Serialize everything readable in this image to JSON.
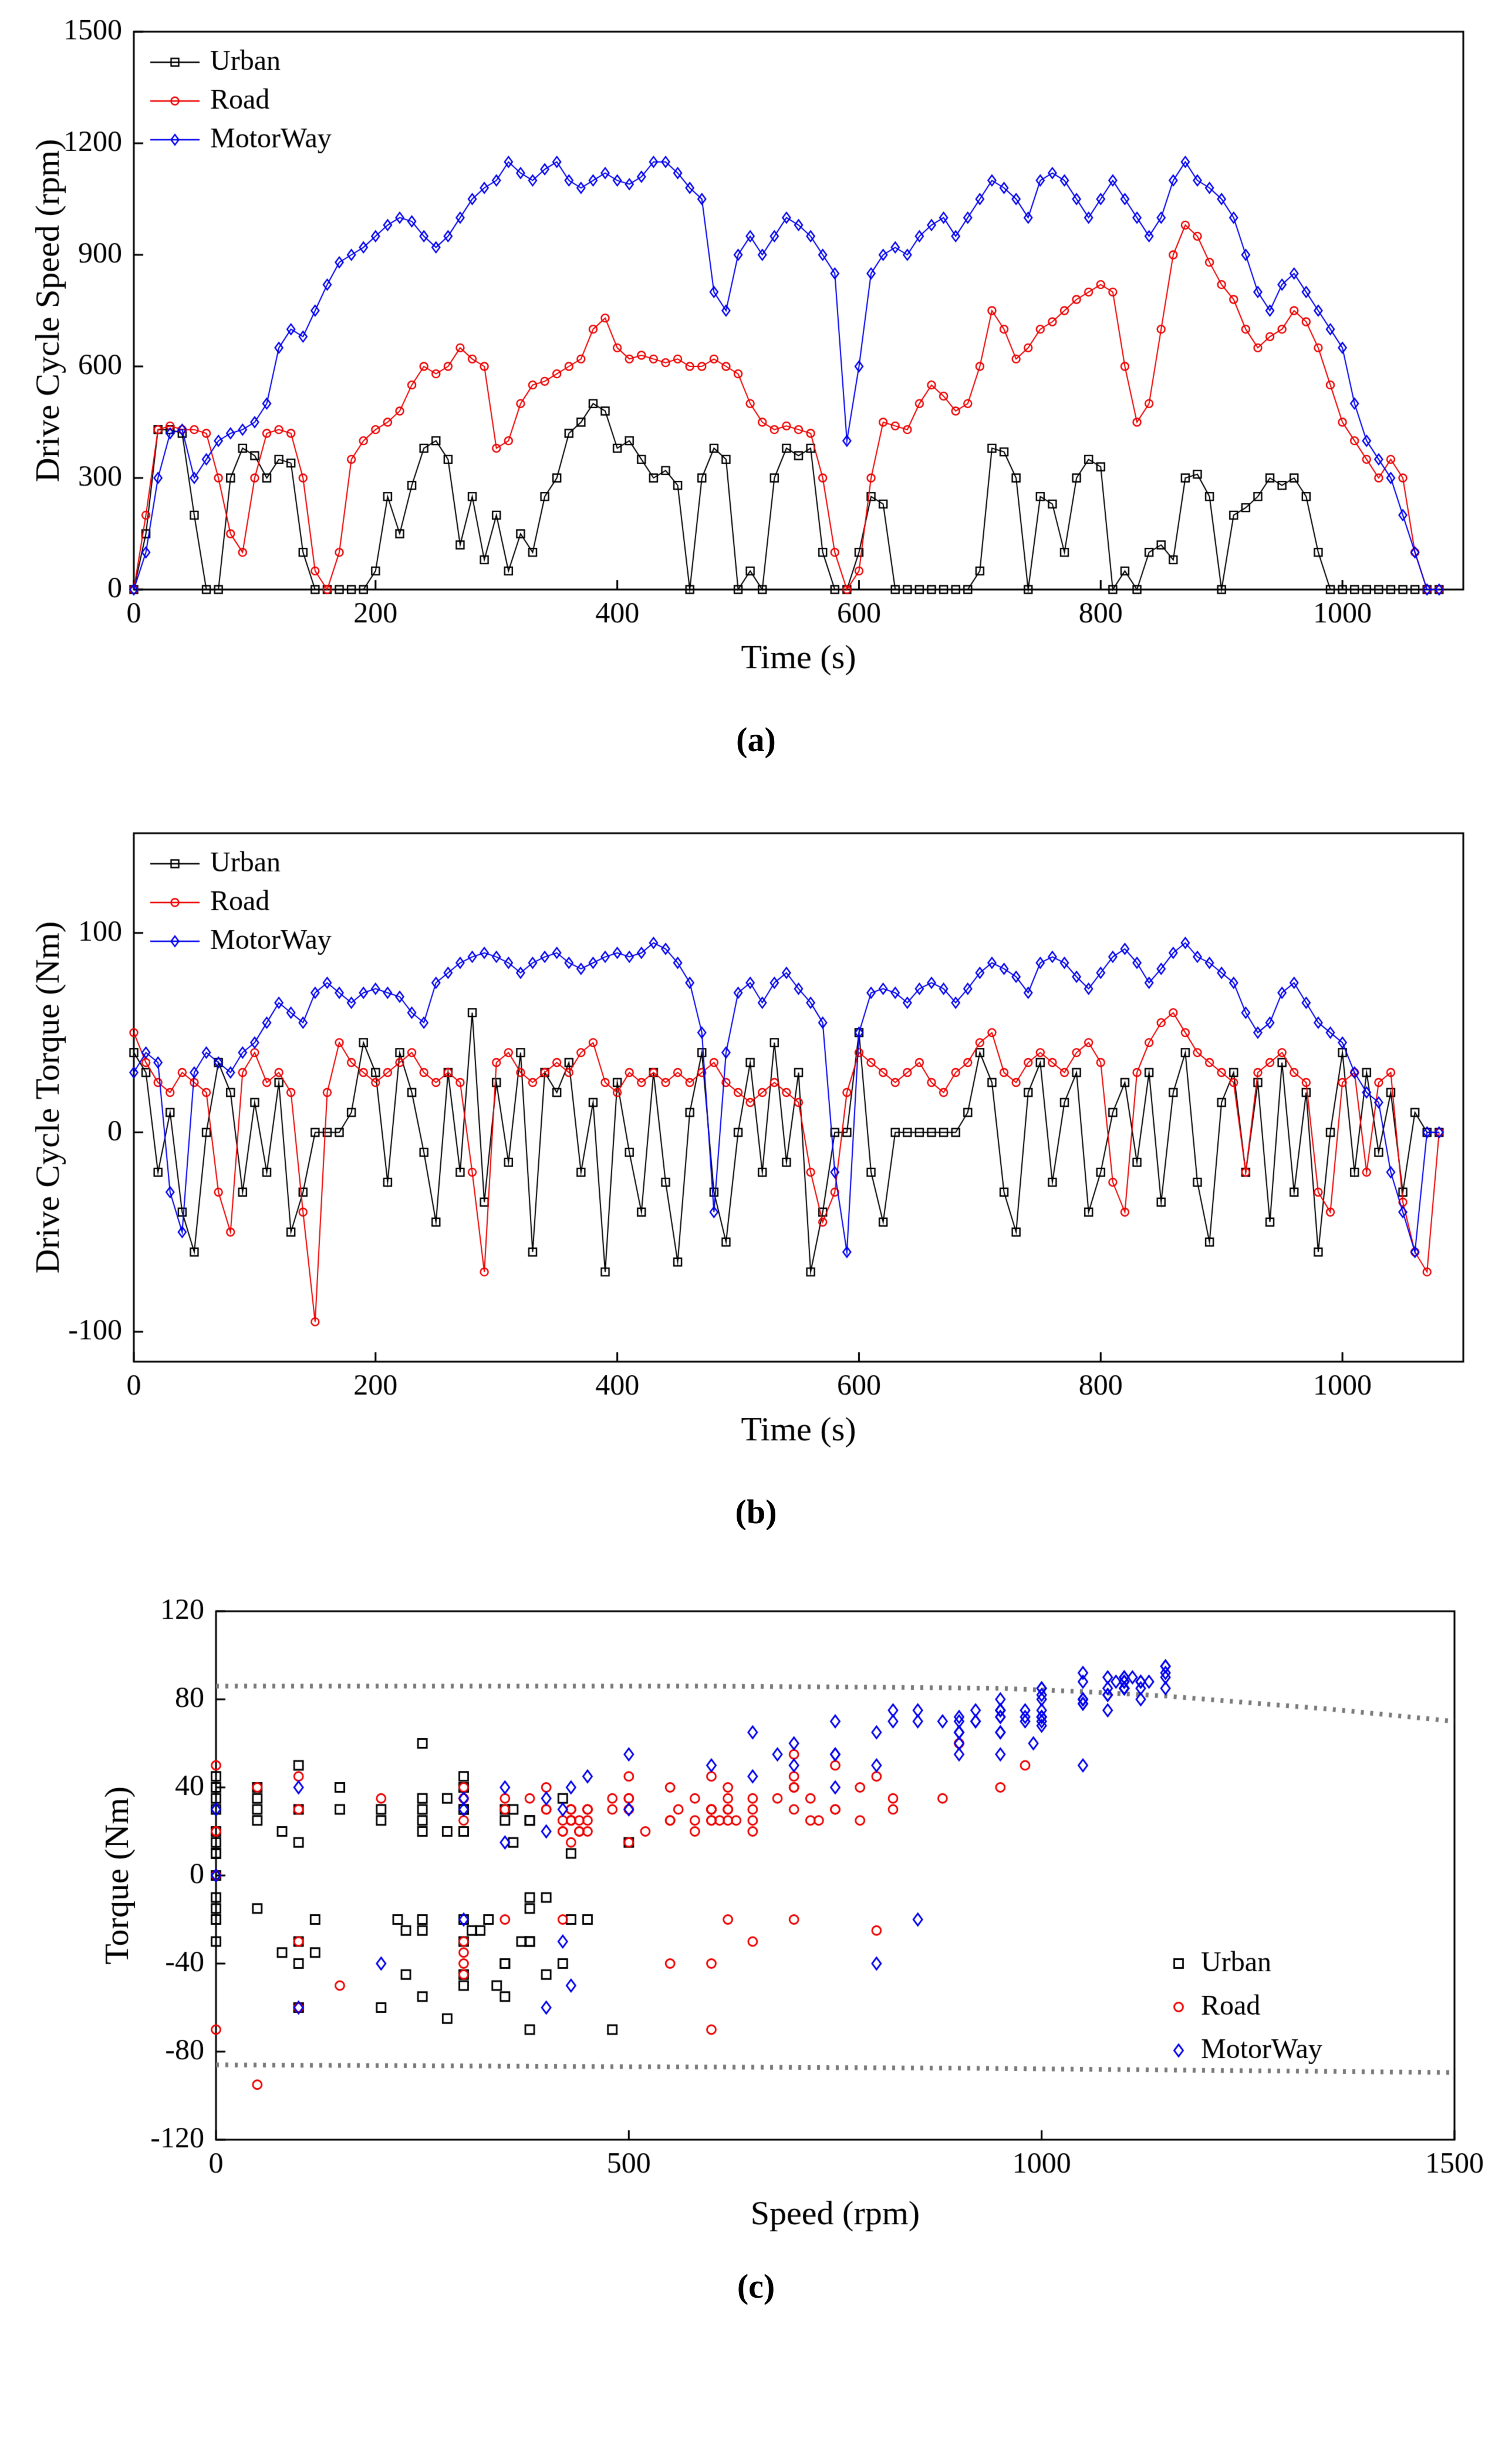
{
  "figure": {
    "description": "Three stacked panels: (a) drive cycle speed vs time, (b) drive cycle torque vs time, (c) torque vs speed operating-point scatter with dotted torque-limit envelopes",
    "series_names": [
      "Urban",
      "Road",
      "MotorWay"
    ],
    "colors": {
      "urban": "#000000",
      "road": "#ee0000",
      "motorway": "#0000ee",
      "envelope": "#7a7a7a"
    }
  },
  "chart_data": [
    {
      "id": "a",
      "type": "line",
      "xlabel": "Time (s)",
      "ylabel": "Drive Cycle Speed (rpm)",
      "xlim": [
        0,
        1100
      ],
      "ylim": [
        0,
        1500
      ],
      "xticks": [
        0,
        200,
        400,
        600,
        800,
        1000
      ],
      "yticks": [
        0,
        300,
        600,
        900,
        1200,
        1500
      ],
      "legend": [
        "Urban",
        "Road",
        "MotorWay"
      ],
      "legend_position": "top-left",
      "caption": "(a)",
      "x": [
        0,
        10,
        20,
        30,
        40,
        50,
        60,
        70,
        80,
        90,
        100,
        110,
        120,
        130,
        140,
        150,
        160,
        170,
        180,
        190,
        200,
        210,
        220,
        230,
        240,
        250,
        260,
        270,
        280,
        290,
        300,
        310,
        320,
        330,
        340,
        350,
        360,
        370,
        380,
        390,
        400,
        410,
        420,
        430,
        440,
        450,
        460,
        470,
        480,
        490,
        500,
        510,
        520,
        530,
        540,
        550,
        560,
        570,
        580,
        590,
        600,
        610,
        620,
        630,
        640,
        650,
        660,
        670,
        680,
        690,
        700,
        710,
        720,
        730,
        740,
        750,
        760,
        770,
        780,
        790,
        800,
        810,
        820,
        830,
        840,
        850,
        860,
        870,
        880,
        890,
        900,
        910,
        920,
        930,
        940,
        950,
        960,
        970,
        980,
        990,
        1000,
        1010,
        1020,
        1030,
        1040,
        1050,
        1060,
        1070,
        1080
      ],
      "series": [
        {
          "name": "Urban",
          "marker": "square",
          "color": "#000000",
          "values": [
            0,
            150,
            430,
            430,
            420,
            200,
            0,
            0,
            300,
            380,
            360,
            300,
            350,
            340,
            100,
            0,
            0,
            0,
            0,
            0,
            50,
            250,
            150,
            280,
            380,
            400,
            350,
            120,
            250,
            80,
            200,
            50,
            150,
            100,
            250,
            300,
            420,
            450,
            500,
            480,
            380,
            400,
            350,
            300,
            320,
            280,
            0,
            300,
            380,
            350,
            0,
            50,
            0,
            300,
            380,
            360,
            380,
            100,
            0,
            0,
            100,
            250,
            230,
            0,
            0,
            0,
            0,
            0,
            0,
            0,
            50,
            380,
            370,
            300,
            0,
            250,
            230,
            100,
            300,
            350,
            330,
            0,
            50,
            0,
            100,
            120,
            80,
            300,
            310,
            250,
            0,
            200,
            220,
            250,
            300,
            280,
            300,
            250,
            100,
            0,
            0,
            0,
            0,
            0,
            0,
            0,
            0,
            0,
            0
          ]
        },
        {
          "name": "Road",
          "marker": "circle",
          "color": "#ee0000",
          "values": [
            0,
            200,
            430,
            440,
            430,
            430,
            420,
            300,
            150,
            100,
            300,
            420,
            430,
            420,
            300,
            50,
            0,
            100,
            350,
            400,
            430,
            450,
            480,
            550,
            600,
            580,
            600,
            650,
            620,
            600,
            380,
            400,
            500,
            550,
            560,
            580,
            600,
            620,
            700,
            730,
            650,
            620,
            630,
            620,
            610,
            620,
            600,
            600,
            620,
            600,
            580,
            500,
            450,
            430,
            440,
            430,
            420,
            300,
            100,
            0,
            50,
            300,
            450,
            440,
            430,
            500,
            550,
            520,
            480,
            500,
            600,
            750,
            700,
            620,
            650,
            700,
            720,
            750,
            780,
            800,
            820,
            800,
            600,
            450,
            500,
            700,
            900,
            980,
            950,
            880,
            820,
            780,
            700,
            650,
            680,
            700,
            750,
            720,
            650,
            550,
            450,
            400,
            350,
            300,
            350,
            300,
            100,
            0,
            0
          ]
        },
        {
          "name": "MotorWay",
          "marker": "diamond",
          "color": "#0000ee",
          "values": [
            0,
            100,
            300,
            420,
            430,
            300,
            350,
            400,
            420,
            430,
            450,
            500,
            650,
            700,
            680,
            750,
            820,
            880,
            900,
            920,
            950,
            980,
            1000,
            990,
            950,
            920,
            950,
            1000,
            1050,
            1080,
            1100,
            1150,
            1120,
            1100,
            1130,
            1150,
            1100,
            1080,
            1100,
            1120,
            1100,
            1090,
            1110,
            1150,
            1150,
            1120,
            1080,
            1050,
            800,
            750,
            900,
            950,
            900,
            950,
            1000,
            980,
            950,
            900,
            850,
            400,
            600,
            850,
            900,
            920,
            900,
            950,
            980,
            1000,
            950,
            1000,
            1050,
            1100,
            1080,
            1050,
            1000,
            1100,
            1120,
            1100,
            1050,
            1000,
            1050,
            1100,
            1050,
            1000,
            950,
            1000,
            1100,
            1150,
            1100,
            1080,
            1050,
            1000,
            900,
            800,
            750,
            820,
            850,
            800,
            750,
            700,
            650,
            500,
            400,
            350,
            300,
            200,
            100,
            0,
            0
          ]
        }
      ]
    },
    {
      "id": "b",
      "type": "line",
      "xlabel": "Time (s)",
      "ylabel": "Drive Cycle Torque (Nm)",
      "xlim": [
        0,
        1100
      ],
      "ylim": [
        -115,
        150
      ],
      "xticks": [
        0,
        200,
        400,
        600,
        800,
        1000
      ],
      "yticks": [
        -100,
        0,
        100
      ],
      "legend": [
        "Urban",
        "Road",
        "MotorWay"
      ],
      "legend_position": "top-left",
      "caption": "(b)",
      "x": [
        0,
        10,
        20,
        30,
        40,
        50,
        60,
        70,
        80,
        90,
        100,
        110,
        120,
        130,
        140,
        150,
        160,
        170,
        180,
        190,
        200,
        210,
        220,
        230,
        240,
        250,
        260,
        270,
        280,
        290,
        300,
        310,
        320,
        330,
        340,
        350,
        360,
        370,
        380,
        390,
        400,
        410,
        420,
        430,
        440,
        450,
        460,
        470,
        480,
        490,
        500,
        510,
        520,
        530,
        540,
        550,
        560,
        570,
        580,
        590,
        600,
        610,
        620,
        630,
        640,
        650,
        660,
        670,
        680,
        690,
        700,
        710,
        720,
        730,
        740,
        750,
        760,
        770,
        780,
        790,
        800,
        810,
        820,
        830,
        840,
        850,
        860,
        870,
        880,
        890,
        900,
        910,
        920,
        930,
        940,
        950,
        960,
        970,
        980,
        990,
        1000,
        1010,
        1020,
        1030,
        1040,
        1050,
        1060,
        1070,
        1080
      ],
      "series": [
        {
          "name": "Urban",
          "marker": "square",
          "color": "#000000",
          "values": [
            40,
            30,
            -20,
            10,
            -40,
            -60,
            0,
            35,
            20,
            -30,
            15,
            -20,
            25,
            -50,
            -30,
            0,
            0,
            0,
            10,
            45,
            30,
            -25,
            40,
            20,
            -10,
            -45,
            30,
            -20,
            60,
            -35,
            25,
            -15,
            40,
            -60,
            30,
            20,
            35,
            -20,
            15,
            -70,
            25,
            -10,
            -40,
            30,
            -25,
            -65,
            10,
            40,
            -30,
            -55,
            0,
            35,
            -20,
            45,
            -15,
            30,
            -70,
            -40,
            0,
            0,
            50,
            -20,
            -45,
            0,
            0,
            0,
            0,
            0,
            0,
            10,
            40,
            25,
            -30,
            -50,
            20,
            35,
            -25,
            15,
            30,
            -40,
            -20,
            10,
            25,
            -15,
            30,
            -35,
            20,
            40,
            -25,
            -55,
            15,
            30,
            -20,
            25,
            -45,
            35,
            -30,
            20,
            -60,
            0,
            40,
            -20,
            30,
            -10,
            20,
            -30,
            10,
            0,
            0
          ]
        },
        {
          "name": "Road",
          "marker": "circle",
          "color": "#ee0000",
          "values": [
            50,
            35,
            25,
            20,
            30,
            25,
            20,
            -30,
            -50,
            30,
            40,
            25,
            30,
            20,
            -40,
            -95,
            20,
            45,
            35,
            30,
            25,
            30,
            35,
            40,
            30,
            25,
            30,
            25,
            -20,
            -70,
            35,
            40,
            30,
            25,
            30,
            35,
            30,
            40,
            45,
            25,
            20,
            30,
            25,
            30,
            25,
            30,
            25,
            30,
            35,
            25,
            20,
            15,
            20,
            25,
            20,
            15,
            -20,
            -45,
            -30,
            20,
            40,
            35,
            30,
            25,
            30,
            35,
            25,
            20,
            30,
            35,
            45,
            50,
            30,
            25,
            35,
            40,
            35,
            30,
            40,
            45,
            35,
            -25,
            -40,
            30,
            45,
            55,
            60,
            50,
            40,
            35,
            30,
            25,
            -20,
            30,
            35,
            40,
            30,
            25,
            -30,
            -40,
            25,
            30,
            -20,
            25,
            30,
            -35,
            -60,
            -70,
            0
          ]
        },
        {
          "name": "MotorWay",
          "marker": "diamond",
          "color": "#0000ee",
          "values": [
            30,
            40,
            35,
            -30,
            -50,
            30,
            40,
            35,
            30,
            40,
            45,
            55,
            65,
            60,
            55,
            70,
            75,
            70,
            65,
            70,
            72,
            70,
            68,
            60,
            55,
            75,
            80,
            85,
            88,
            90,
            88,
            85,
            80,
            85,
            88,
            90,
            85,
            82,
            85,
            88,
            90,
            88,
            90,
            95,
            92,
            85,
            75,
            50,
            -40,
            40,
            70,
            75,
            65,
            75,
            80,
            72,
            65,
            55,
            -20,
            -60,
            50,
            70,
            72,
            70,
            65,
            72,
            75,
            72,
            65,
            72,
            80,
            85,
            82,
            78,
            70,
            85,
            88,
            85,
            78,
            72,
            80,
            88,
            92,
            85,
            75,
            82,
            90,
            95,
            88,
            85,
            80,
            75,
            60,
            50,
            55,
            70,
            75,
            65,
            55,
            50,
            45,
            30,
            20,
            15,
            -20,
            -40,
            -60,
            0,
            0
          ]
        }
      ]
    },
    {
      "id": "c",
      "type": "scatter",
      "xlabel": "Speed (rpm)",
      "ylabel": "Torque (Nm)",
      "xlim": [
        0,
        1500
      ],
      "ylim": [
        -120,
        120
      ],
      "xticks": [
        0,
        500,
        1000,
        1500
      ],
      "yticks": [
        -120,
        -80,
        -40,
        0,
        40,
        80,
        120
      ],
      "legend": [
        "Urban",
        "Road",
        "MotorWay"
      ],
      "legend_position": "bottom-right",
      "caption": "(c)",
      "series_zip": true,
      "note": "Operating points: x = drive-cycle speed (panel a), y = drive-cycle torque (panel b), paired per time sample",
      "envelopes": {
        "color": "#7a7a7a",
        "upper": [
          [
            0,
            86
          ],
          [
            300,
            86
          ],
          [
            600,
            86
          ],
          [
            800,
            85.5
          ],
          [
            950,
            85
          ],
          [
            1050,
            83.5
          ],
          [
            1150,
            81.5
          ],
          [
            1250,
            78.5
          ],
          [
            1350,
            75.5
          ],
          [
            1500,
            70
          ]
        ],
        "lower": [
          [
            0,
            -86
          ],
          [
            300,
            -86.5
          ],
          [
            600,
            -87
          ],
          [
            900,
            -87.5
          ],
          [
            1200,
            -88.5
          ],
          [
            1500,
            -89.5
          ]
        ]
      }
    }
  ]
}
